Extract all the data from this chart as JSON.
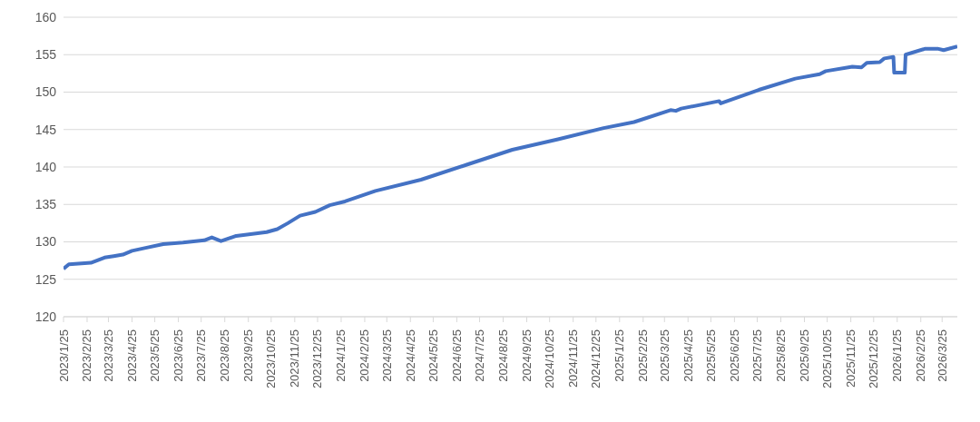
{
  "chart_data": {
    "type": "line",
    "x": [
      "2023-01-25",
      "2023-02-01",
      "2023-03-02",
      "2023-03-20",
      "2023-04-01",
      "2023-04-13",
      "2023-04-25",
      "2023-05-13",
      "2023-06-05",
      "2023-07-01",
      "2023-07-29",
      "2023-08-08",
      "2023-08-20",
      "2023-09-09",
      "2023-10-19",
      "2023-11-02",
      "2023-11-16",
      "2023-12-02",
      "2023-12-22",
      "2024-01-10",
      "2024-01-30",
      "2024-03-10",
      "2024-05-09",
      "2024-07-08",
      "2024-09-06",
      "2024-11-05",
      "2025-01-04",
      "2025-02-13",
      "2025-04-02",
      "2025-04-09",
      "2025-04-16",
      "2025-06-05",
      "2025-06-07",
      "2025-07-27",
      "2025-09-13",
      "2025-10-15",
      "2025-10-23",
      "2025-11-27",
      "2025-12-09",
      "2025-12-16",
      "2026-01-02",
      "2026-01-08",
      "2026-01-20",
      "2026-01-21",
      "2026-02-04",
      "2026-02-05",
      "2026-03-03",
      "2026-03-19",
      "2026-03-27",
      "2026-04-14"
    ],
    "series": [
      {
        "color": "#4472c4",
        "values": [
          126.4,
          127.0,
          127.2,
          127.9,
          128.1,
          128.3,
          128.8,
          129.2,
          129.7,
          129.9,
          130.2,
          130.6,
          130.1,
          130.8,
          131.3,
          131.7,
          132.5,
          133.5,
          134.0,
          134.9,
          135.4,
          136.8,
          138.3,
          140.3,
          142.3,
          143.7,
          145.2,
          146.0,
          147.6,
          147.5,
          147.8,
          148.8,
          148.5,
          150.3,
          151.8,
          152.4,
          152.8,
          153.4,
          153.3,
          153.9,
          154.0,
          154.5,
          154.7,
          152.6,
          152.6,
          155.0,
          155.8,
          155.8,
          155.6,
          156.1
        ]
      }
    ],
    "xlim": [
      "2023-01-25",
      "2026-04-14"
    ],
    "xticks": [
      {
        "value": "2023-01-25",
        "label": "2023/1/25"
      },
      {
        "value": "2023-02-25",
        "label": "2023/2/25"
      },
      {
        "value": "2023-03-25",
        "label": "2023/3/25"
      },
      {
        "value": "2023-04-25",
        "label": "2023/4/25"
      },
      {
        "value": "2023-05-25",
        "label": "2023/5/25"
      },
      {
        "value": "2023-06-25",
        "label": "2023/6/25"
      },
      {
        "value": "2023-07-25",
        "label": "2023/7/25"
      },
      {
        "value": "2023-08-25",
        "label": "2023/8/25"
      },
      {
        "value": "2023-09-25",
        "label": "2023/9/25"
      },
      {
        "value": "2023-10-25",
        "label": "2023/10/25"
      },
      {
        "value": "2023-11-25",
        "label": "2023/11/25"
      },
      {
        "value": "2023-12-25",
        "label": "2023/12/25"
      },
      {
        "value": "2024-01-25",
        "label": "2024/1/25"
      },
      {
        "value": "2024-02-25",
        "label": "2024/2/25"
      },
      {
        "value": "2024-03-25",
        "label": "2024/3/25"
      },
      {
        "value": "2024-04-25",
        "label": "2024/4/25"
      },
      {
        "value": "2024-05-25",
        "label": "2024/5/25"
      },
      {
        "value": "2024-06-25",
        "label": "2024/6/25"
      },
      {
        "value": "2024-07-25",
        "label": "2024/7/25"
      },
      {
        "value": "2024-08-25",
        "label": "2024/8/25"
      },
      {
        "value": "2024-09-25",
        "label": "2024/9/25"
      },
      {
        "value": "2024-10-25",
        "label": "2024/10/25"
      },
      {
        "value": "2024-11-25",
        "label": "2024/11/25"
      },
      {
        "value": "2024-12-25",
        "label": "2024/12/25"
      },
      {
        "value": "2025-01-25",
        "label": "2025/1/25"
      },
      {
        "value": "2025-02-25",
        "label": "2025/2/25"
      },
      {
        "value": "2025-03-25",
        "label": "2025/3/25"
      },
      {
        "value": "2025-04-25",
        "label": "2025/4/25"
      },
      {
        "value": "2025-05-25",
        "label": "2025/5/25"
      },
      {
        "value": "2025-06-25",
        "label": "2025/6/25"
      },
      {
        "value": "2025-07-25",
        "label": "2025/7/25"
      },
      {
        "value": "2025-08-25",
        "label": "2025/8/25"
      },
      {
        "value": "2025-09-25",
        "label": "2025/9/25"
      },
      {
        "value": "2025-10-25",
        "label": "2025/10/25"
      },
      {
        "value": "2025-11-25",
        "label": "2025/11/25"
      },
      {
        "value": "2025-12-25",
        "label": "2025/12/25"
      },
      {
        "value": "2026-01-25",
        "label": "2026/1/25"
      },
      {
        "value": "2026-02-25",
        "label": "2026/2/25"
      },
      {
        "value": "2026-03-25",
        "label": "2026/3/25"
      }
    ],
    "ylim": [
      120,
      160
    ],
    "yticks": [
      120,
      125,
      130,
      135,
      140,
      145,
      150,
      155,
      160
    ],
    "grid": "y",
    "marker": "none",
    "line_style": "solid"
  }
}
